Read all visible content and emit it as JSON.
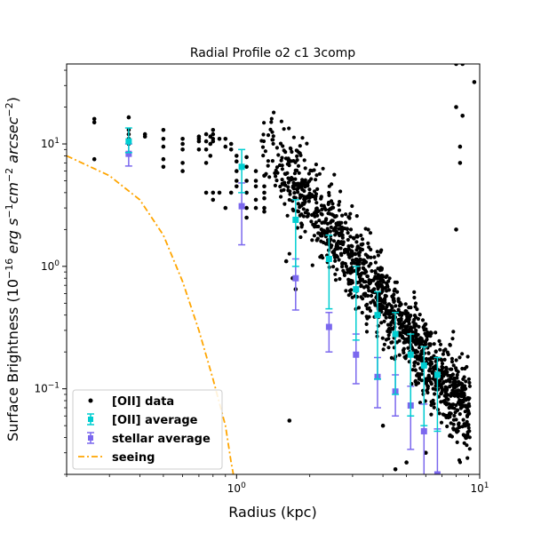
{
  "chart_data": {
    "type": "scatter",
    "title": "Radial Profile o2 c1 3comp",
    "xlabel": "Radius (kpc)",
    "ylabel": "Surface Brightness  (10^{-16} erg s^{-1} cm^{-2} arcsec^{-2})",
    "ylabel_parts": {
      "prefix": "Surface Brightness  (10",
      "exp1": "−16",
      "erg": " erg s",
      "exp2": "−1",
      "cm": "cm",
      "exp3": "−2",
      "arcsec": " arcsec",
      "exp4": "−2",
      "suffix": ")"
    },
    "xscale": "log",
    "yscale": "log",
    "xlim": [
      0.2,
      10
    ],
    "ylim": [
      0.02,
      45
    ],
    "x_ticks": [
      {
        "value": 1,
        "base": "10",
        "exp": "0"
      },
      {
        "value": 10,
        "base": "10",
        "exp": "1"
      }
    ],
    "y_ticks": [
      {
        "value": 0.1,
        "base": "10",
        "exp": "−1"
      },
      {
        "value": 1,
        "base": "10",
        "exp": "0"
      },
      {
        "value": 10,
        "base": "10",
        "exp": "1"
      }
    ],
    "legend": {
      "position": "lower-left",
      "entries": [
        {
          "label": "[OII] data",
          "marker": "dot",
          "color": "#000000"
        },
        {
          "label": "[OII] average",
          "marker": "errorbar-square",
          "color": "#00CED1"
        },
        {
          "label": "stellar average",
          "marker": "errorbar-square",
          "color": "#7B68EE"
        },
        {
          "label": "seeing",
          "marker": "dashdot",
          "color": "#FFA500"
        }
      ]
    },
    "series": [
      {
        "name": "[OII] data",
        "kind": "scatter",
        "color": "#000000",
        "points": [
          [
            0.26,
            16
          ],
          [
            0.26,
            15
          ],
          [
            0.26,
            7.5
          ],
          [
            0.36,
            16.5
          ],
          [
            0.36,
            13
          ],
          [
            0.36,
            11
          ],
          [
            0.36,
            10
          ],
          [
            0.36,
            12
          ],
          [
            0.42,
            12
          ],
          [
            0.42,
            11.5
          ],
          [
            0.5,
            13
          ],
          [
            0.5,
            11
          ],
          [
            0.5,
            9.5
          ],
          [
            0.5,
            7.5
          ],
          [
            0.5,
            6.5
          ],
          [
            0.6,
            11
          ],
          [
            0.6,
            10
          ],
          [
            0.6,
            9
          ],
          [
            0.6,
            7
          ],
          [
            0.6,
            6
          ],
          [
            0.7,
            11.5
          ],
          [
            0.7,
            11
          ],
          [
            0.7,
            10.5
          ],
          [
            0.7,
            9
          ],
          [
            0.75,
            12
          ],
          [
            0.75,
            10.5
          ],
          [
            0.75,
            9
          ],
          [
            0.75,
            7
          ],
          [
            0.75,
            4
          ],
          [
            0.78,
            11.5
          ],
          [
            0.78,
            10
          ],
          [
            0.78,
            8
          ],
          [
            0.8,
            13
          ],
          [
            0.8,
            12
          ],
          [
            0.8,
            11
          ],
          [
            0.8,
            10.5
          ],
          [
            0.8,
            4
          ],
          [
            0.8,
            3.5
          ],
          [
            0.85,
            4
          ],
          [
            0.85,
            11
          ],
          [
            0.9,
            11
          ],
          [
            0.9,
            9.5
          ],
          [
            0.9,
            3
          ],
          [
            0.95,
            10
          ],
          [
            0.95,
            9
          ],
          [
            0.95,
            4
          ],
          [
            1.0,
            8
          ],
          [
            1.0,
            7.2
          ],
          [
            1.0,
            6
          ],
          [
            1.0,
            5
          ],
          [
            1.0,
            4.5
          ],
          [
            1.1,
            7.8
          ],
          [
            1.1,
            6.5
          ],
          [
            1.1,
            5
          ],
          [
            1.1,
            4
          ],
          [
            1.1,
            3
          ],
          [
            1.1,
            2.5
          ],
          [
            1.2,
            6
          ],
          [
            1.2,
            5
          ],
          [
            1.2,
            4.5
          ],
          [
            1.2,
            3.5
          ],
          [
            1.2,
            3
          ],
          [
            1.3,
            5.5
          ],
          [
            1.3,
            4.5
          ],
          [
            1.3,
            3.6
          ],
          [
            1.3,
            3
          ],
          [
            1.3,
            2.8
          ],
          [
            1.3,
            4
          ],
          [
            1.65,
            0.055
          ],
          [
            1.6,
            1.1
          ],
          [
            1.7,
            0.8
          ],
          [
            1.75,
            0.65
          ],
          [
            4.0,
            0.05
          ],
          [
            4.5,
            0.022
          ],
          [
            5.0,
            0.025
          ],
          [
            6.0,
            0.03
          ],
          [
            7.5,
            0.06
          ],
          [
            7.5,
            0.07
          ],
          [
            8.0,
            20
          ],
          [
            8.5,
            17
          ],
          [
            8.3,
            9.5
          ],
          [
            8.3,
            7
          ],
          [
            8.0,
            2
          ],
          [
            8.0,
            45
          ],
          [
            8.5,
            45
          ],
          [
            9.5,
            32
          ],
          [
            8.0,
            0.09
          ],
          [
            8.5,
            0.08
          ]
        ]
      },
      {
        "name": "[OII] average",
        "kind": "errorbar",
        "color": "#00CED1",
        "points": [
          {
            "x": 0.36,
            "y": 10.5,
            "lo": 8.5,
            "hi": 13.5
          },
          {
            "x": 1.05,
            "y": 6.5,
            "lo": 4.0,
            "hi": 9.0
          },
          {
            "x": 1.75,
            "y": 2.4,
            "lo": 1.0,
            "hi": 3.5
          },
          {
            "x": 2.4,
            "y": 1.15,
            "lo": 0.45,
            "hi": 1.8
          },
          {
            "x": 3.1,
            "y": 0.65,
            "lo": 0.25,
            "hi": 1.0
          },
          {
            "x": 3.8,
            "y": 0.4,
            "lo": 0.12,
            "hi": 0.62
          },
          {
            "x": 4.5,
            "y": 0.28,
            "lo": 0.09,
            "hi": 0.42
          },
          {
            "x": 5.2,
            "y": 0.19,
            "lo": 0.06,
            "hi": 0.28
          },
          {
            "x": 5.9,
            "y": 0.155,
            "lo": 0.05,
            "hi": 0.22
          },
          {
            "x": 6.7,
            "y": 0.13,
            "lo": 0.045,
            "hi": 0.18
          }
        ]
      },
      {
        "name": "stellar average",
        "kind": "errorbar",
        "color": "#7B68EE",
        "points": [
          {
            "x": 0.36,
            "y": 8.3,
            "lo": 6.6,
            "hi": 10.0
          },
          {
            "x": 1.05,
            "y": 3.1,
            "lo": 1.5,
            "hi": 4.8
          },
          {
            "x": 1.75,
            "y": 0.8,
            "lo": 0.44,
            "hi": 1.15
          },
          {
            "x": 2.4,
            "y": 0.32,
            "lo": 0.2,
            "hi": 0.42
          },
          {
            "x": 3.1,
            "y": 0.19,
            "lo": 0.11,
            "hi": 0.28
          },
          {
            "x": 3.8,
            "y": 0.125,
            "lo": 0.07,
            "hi": 0.18
          },
          {
            "x": 4.5,
            "y": 0.095,
            "lo": 0.06,
            "hi": 0.13
          },
          {
            "x": 5.2,
            "y": 0.073,
            "lo": 0.032,
            "hi": 0.105
          },
          {
            "x": 5.9,
            "y": 0.045,
            "lo": 0.015,
            "hi": 0.075
          },
          {
            "x": 6.7,
            "y": 0.02,
            "lo": 0.01,
            "hi": 0.047
          }
        ]
      },
      {
        "name": "seeing",
        "kind": "line",
        "color": "#FFA500",
        "points": [
          [
            0.2,
            8.0
          ],
          [
            0.3,
            5.5
          ],
          [
            0.4,
            3.5
          ],
          [
            0.5,
            1.8
          ],
          [
            0.6,
            0.75
          ],
          [
            0.7,
            0.3
          ],
          [
            0.8,
            0.12
          ],
          [
            0.9,
            0.05
          ],
          [
            0.95,
            0.025
          ],
          [
            0.97,
            0.02
          ]
        ]
      }
    ]
  }
}
